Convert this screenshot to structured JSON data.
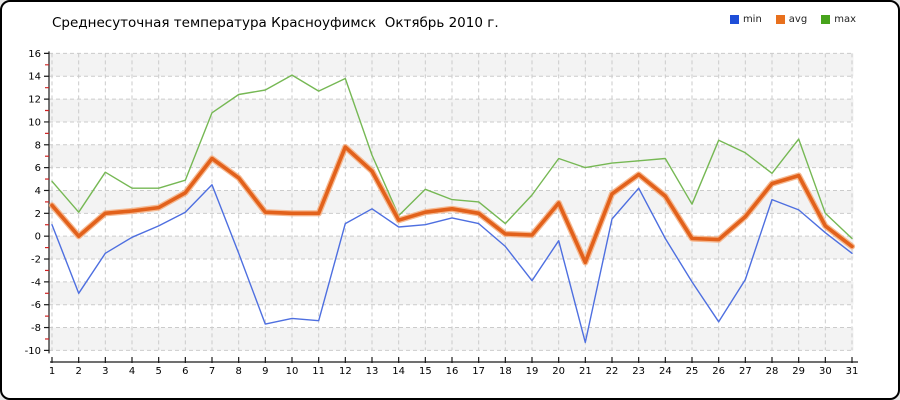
{
  "title": "Среднесуточная температура Красноуфимск  Октябрь 2010 г.",
  "legend": {
    "items": [
      {
        "label": "min",
        "color": "#1e4ed8"
      },
      {
        "label": "avg",
        "color": "#e8701d"
      },
      {
        "label": "max",
        "color": "#47a31c"
      }
    ]
  },
  "axes": {
    "y_tick_labels": [
      "16",
      "14",
      "12",
      "10",
      "8",
      "6",
      "4",
      "2",
      "0",
      "-2",
      "-4",
      "-6",
      "-8",
      "-10"
    ],
    "y_ticks": [
      16,
      14,
      12,
      10,
      8,
      6,
      4,
      2,
      0,
      -2,
      -4,
      -6,
      -8,
      -10
    ],
    "y_minor_ticks": [
      15,
      13,
      11,
      9,
      7,
      5,
      3,
      1,
      -1,
      -3,
      -5,
      -7,
      -9
    ],
    "x_ticks": [
      1,
      2,
      3,
      4,
      5,
      6,
      7,
      8,
      9,
      10,
      11,
      12,
      13,
      14,
      15,
      16,
      17,
      18,
      19,
      20,
      21,
      22,
      23,
      24,
      25,
      26,
      27,
      28,
      29,
      30,
      31
    ]
  },
  "chart_data": {
    "type": "line",
    "title": "Среднесуточная температура Красноуфимск  Октябрь 2010 г.",
    "xlabel": "",
    "ylabel": "",
    "x": [
      1,
      2,
      3,
      4,
      5,
      6,
      7,
      8,
      9,
      10,
      11,
      12,
      13,
      14,
      15,
      16,
      17,
      18,
      19,
      20,
      21,
      22,
      23,
      24,
      25,
      26,
      27,
      28,
      29,
      30,
      31
    ],
    "xlim": [
      1,
      31
    ],
    "ylim": [
      -10,
      16
    ],
    "y_tick_step": 2,
    "grid": true,
    "band_fill": true,
    "legend_position": "top-right",
    "series": [
      {
        "name": "max",
        "color": "#76b854",
        "width": 1.4,
        "values": [
          4.8,
          2.1,
          5.6,
          4.2,
          4.2,
          4.9,
          10.8,
          12.4,
          12.8,
          14.1,
          12.7,
          13.8,
          7.1,
          1.8,
          4.1,
          3.2,
          3.0,
          1.1,
          3.6,
          6.8,
          6.0,
          6.4,
          6.6,
          6.8,
          2.8,
          8.4,
          7.3,
          5.5,
          8.5,
          2.0,
          -0.2
        ]
      },
      {
        "name": "min",
        "color": "#4e6fe0",
        "width": 1.4,
        "values": [
          1.0,
          -5.0,
          -1.5,
          -0.1,
          0.9,
          2.1,
          4.5,
          -1.5,
          -7.7,
          -7.2,
          -7.4,
          1.1,
          2.4,
          0.8,
          1.0,
          1.6,
          1.1,
          -0.9,
          -3.9,
          -0.4,
          -9.3,
          1.5,
          4.2,
          -0.2,
          -4.0,
          -7.5,
          -3.8,
          3.2,
          2.3,
          0.3,
          -1.5
        ]
      },
      {
        "name": "avg",
        "color": "#e2611b",
        "halo": "#f5ad7e",
        "width": 3.6,
        "values": [
          2.7,
          0.0,
          2.0,
          2.2,
          2.5,
          3.8,
          6.8,
          5.1,
          2.1,
          2.0,
          2.0,
          7.8,
          5.7,
          1.4,
          2.1,
          2.4,
          2.0,
          0.2,
          0.1,
          2.9,
          -2.3,
          3.7,
          5.4,
          3.5,
          -0.2,
          -0.3,
          1.7,
          4.6,
          5.3,
          0.9,
          -0.9
        ]
      }
    ],
    "colors": {
      "band": "#f3f3f3",
      "grid": "#cbcbcb",
      "axis": "#1a1a1a",
      "minor_tick": "#cc2222"
    }
  }
}
